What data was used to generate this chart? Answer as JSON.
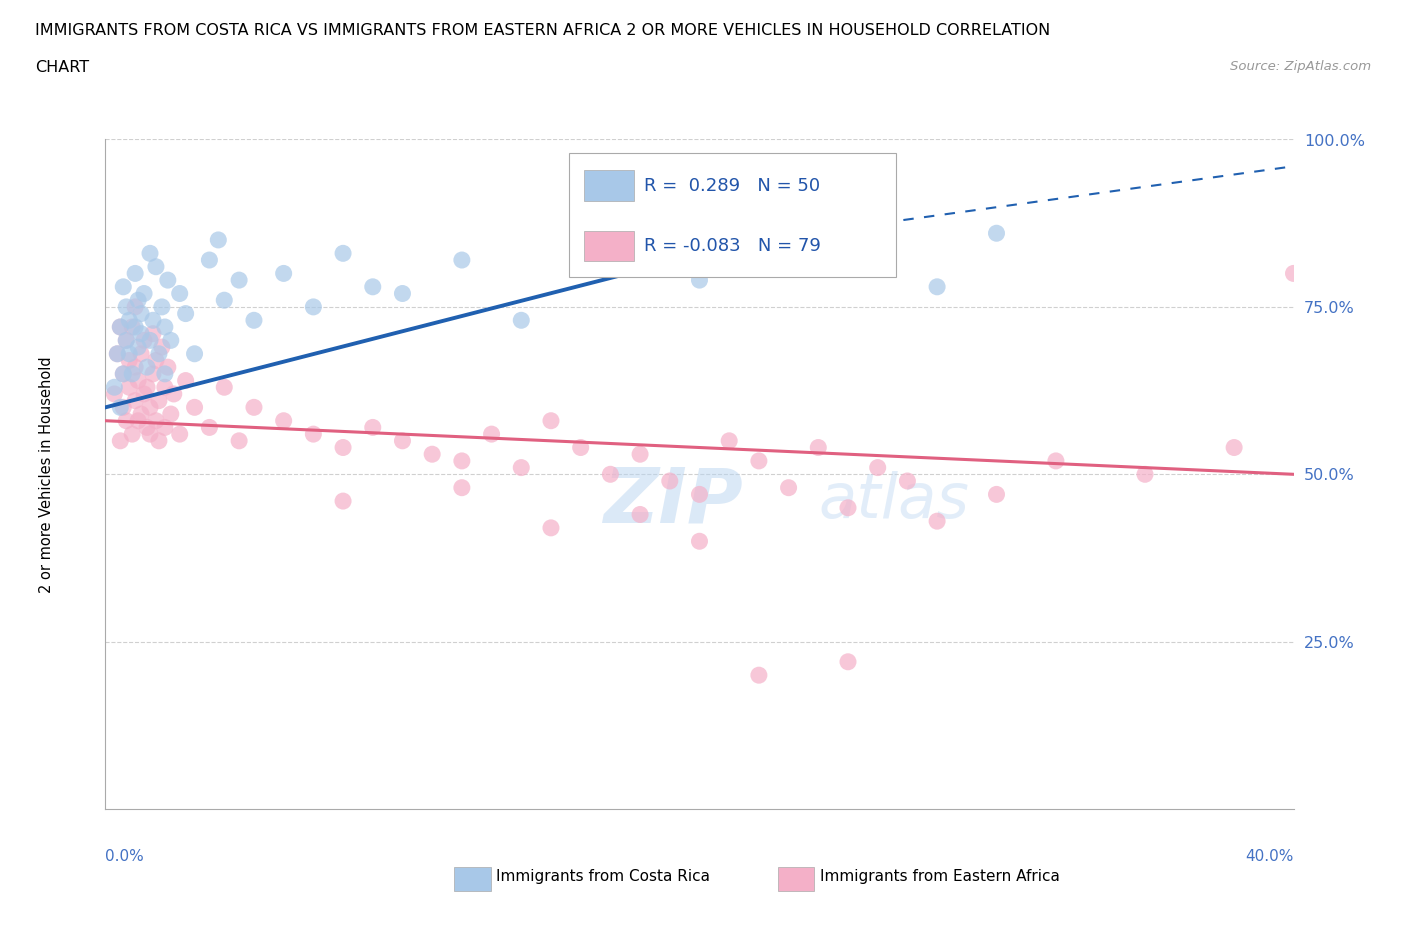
{
  "title_line1": "IMMIGRANTS FROM COSTA RICA VS IMMIGRANTS FROM EASTERN AFRICA 2 OR MORE VEHICLES IN HOUSEHOLD CORRELATION",
  "title_line2": "CHART",
  "source": "Source: ZipAtlas.com",
  "ylabel": "2 or more Vehicles in Household",
  "xmin": 0.0,
  "xmax": 40.0,
  "ymin": 0.0,
  "ymax": 100.0,
  "yticks": [
    25.0,
    50.0,
    75.0,
    100.0
  ],
  "ytick_labels": [
    "25.0%",
    "50.0%",
    "75.0%",
    "100.0%"
  ],
  "costa_rica_color": "#a8c8e8",
  "eastern_africa_color": "#f4b0c8",
  "costa_rica_line_color": "#2060b0",
  "eastern_africa_line_color": "#e06080",
  "R_costa_rica": 0.289,
  "N_costa_rica": 50,
  "R_eastern_africa": -0.083,
  "N_eastern_africa": 79,
  "watermark": "ZIPAtlas",
  "legend_label_1": "Immigrants from Costa Rica",
  "legend_label_2": "Immigrants from Eastern Africa",
  "cr_line_y0": 60.0,
  "cr_line_y1": 85.0,
  "cr_line_x0": 0.0,
  "cr_line_x1": 22.0,
  "cr_dash_x0": 22.0,
  "cr_dash_x1": 40.0,
  "cr_dash_y0": 85.0,
  "cr_dash_y1": 96.0,
  "ea_line_y0": 58.0,
  "ea_line_y1": 50.0,
  "ea_line_x0": 0.0,
  "ea_line_x1": 40.0,
  "cr_x": [
    0.3,
    0.4,
    0.5,
    0.5,
    0.6,
    0.6,
    0.7,
    0.7,
    0.8,
    0.8,
    0.9,
    1.0,
    1.0,
    1.1,
    1.1,
    1.2,
    1.2,
    1.3,
    1.4,
    1.5,
    1.5,
    1.6,
    1.7,
    1.8,
    1.9,
    2.0,
    2.0,
    2.1,
    2.2,
    2.5,
    2.7,
    3.0,
    3.5,
    3.8,
    4.0,
    4.5,
    5.0,
    6.0,
    7.0,
    8.0,
    9.0,
    10.0,
    12.0,
    14.0,
    17.0,
    20.0,
    22.0,
    25.0,
    28.0,
    30.0
  ],
  "cr_y": [
    63,
    68,
    72,
    60,
    78,
    65,
    70,
    75,
    68,
    73,
    65,
    72,
    80,
    69,
    76,
    74,
    71,
    77,
    66,
    70,
    83,
    73,
    81,
    68,
    75,
    72,
    65,
    79,
    70,
    77,
    74,
    68,
    82,
    85,
    76,
    79,
    73,
    80,
    75,
    83,
    78,
    77,
    82,
    73,
    84,
    79,
    85,
    81,
    78,
    86
  ],
  "ea_x": [
    0.3,
    0.4,
    0.5,
    0.5,
    0.6,
    0.6,
    0.7,
    0.7,
    0.8,
    0.8,
    0.9,
    0.9,
    1.0,
    1.0,
    1.0,
    1.1,
    1.1,
    1.2,
    1.2,
    1.3,
    1.3,
    1.4,
    1.4,
    1.5,
    1.5,
    1.6,
    1.6,
    1.7,
    1.7,
    1.8,
    1.8,
    1.9,
    2.0,
    2.0,
    2.1,
    2.2,
    2.3,
    2.5,
    2.7,
    3.0,
    3.5,
    4.0,
    4.5,
    5.0,
    6.0,
    7.0,
    8.0,
    9.0,
    10.0,
    11.0,
    12.0,
    13.0,
    14.0,
    15.0,
    16.0,
    17.0,
    18.0,
    19.0,
    20.0,
    21.0,
    22.0,
    23.0,
    24.0,
    25.0,
    26.0,
    27.0,
    30.0,
    32.0,
    35.0,
    38.0,
    40.0,
    15.0,
    20.0,
    25.0,
    8.0,
    12.0,
    18.0,
    22.0,
    28.0
  ],
  "ea_y": [
    62,
    68,
    55,
    72,
    60,
    65,
    58,
    70,
    63,
    67,
    56,
    72,
    61,
    66,
    75,
    58,
    64,
    59,
    68,
    62,
    70,
    57,
    63,
    60,
    56,
    65,
    71,
    58,
    67,
    61,
    55,
    69,
    63,
    57,
    66,
    59,
    62,
    56,
    64,
    60,
    57,
    63,
    55,
    60,
    58,
    56,
    54,
    57,
    55,
    53,
    52,
    56,
    51,
    58,
    54,
    50,
    53,
    49,
    47,
    55,
    52,
    48,
    54,
    45,
    51,
    49,
    47,
    52,
    50,
    54,
    80,
    42,
    40,
    22,
    46,
    48,
    44,
    20,
    43
  ]
}
